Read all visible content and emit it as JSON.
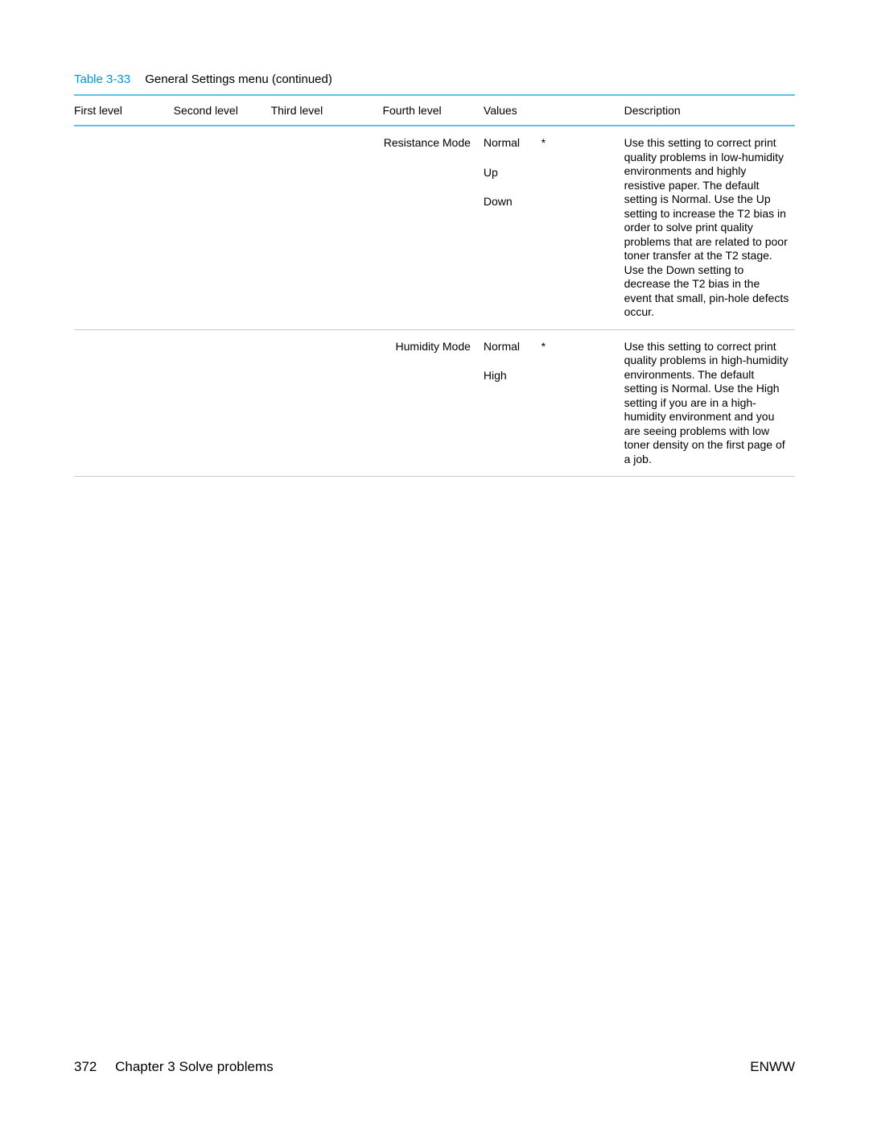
{
  "table": {
    "number": "Table 3-33",
    "title": "General Settings menu (continued)",
    "headers": {
      "first": "First level",
      "second": "Second level",
      "third": "Third level",
      "fourth": "Fourth level",
      "values": "Values",
      "description": "Description"
    },
    "rows": [
      {
        "first": "",
        "second": "",
        "third": "",
        "fourth": "Resistance Mode",
        "values": [
          "Normal",
          "Up",
          "Down"
        ],
        "default_marker": "*",
        "description": "Use this setting to correct print quality problems in low-humidity environments and highly resistive paper. The default setting is Normal. Use the Up setting to increase the T2 bias in order to solve print quality problems that are related to poor toner transfer at the T2 stage. Use the Down setting to decrease the T2 bias in the event that small, pin-hole defects occur."
      },
      {
        "first": "",
        "second": "",
        "third": "",
        "fourth": "Humidity Mode",
        "values": [
          "Normal",
          "High"
        ],
        "default_marker": "*",
        "description": "Use this setting to correct print quality problems in high-humidity environments. The default setting is Normal. Use the High setting if you are in a high-humidity environment and you are seeing problems with low toner density on the first page of a job."
      }
    ]
  },
  "footer": {
    "page_number": "372",
    "chapter": "Chapter 3   Solve problems",
    "right": "ENWW"
  },
  "style": {
    "accent_color": "#0096d6",
    "header_border_color": "#5fc3e8",
    "row_border_color": "#cccccc",
    "background_color": "#ffffff",
    "text_color": "#000000",
    "body_font_size": 14,
    "caption_font_size": 15,
    "footer_font_size": 17
  }
}
